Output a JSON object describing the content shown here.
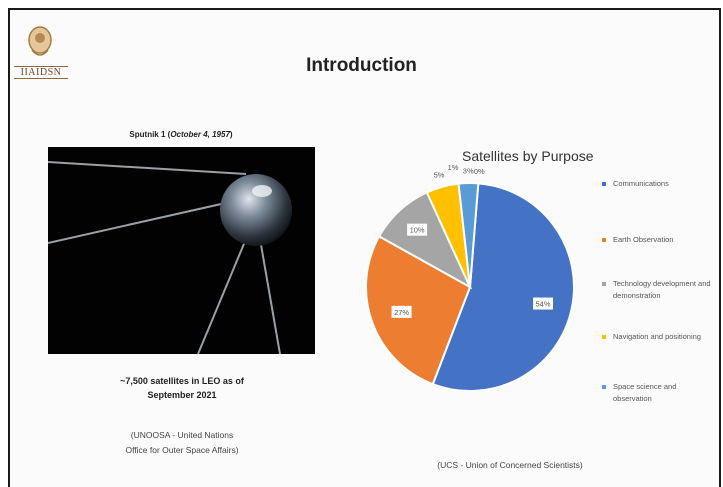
{
  "slide": {
    "logo_text": "IIAIDSN",
    "title": "Introduction",
    "image_caption": {
      "prefix": "Sputnik 1 (",
      "date": "October 4, 1957",
      "suffix": ")"
    },
    "stat_line1": "~7,500 satellites in LEO as of",
    "stat_line2": "September 2021",
    "source_left_line1": "(UNOOSA - United Nations",
    "source_left_line2": "Office for Outer Space Affairs)",
    "source_right": "(UCS - Union of Concerned Scientists)"
  },
  "chart_data": {
    "type": "pie",
    "title": "Satellites by Purpose",
    "labels": [
      "Communications",
      "Earth Observation",
      "Technology development and demonstration",
      "Navigation and positioning",
      "Space science and observation",
      ""
    ],
    "values": [
      54,
      27,
      10,
      5,
      3,
      0
    ],
    "data_labels": [
      "54%",
      "27%",
      "10%",
      "5%",
      "3%",
      "0%"
    ],
    "colors": [
      "#4472c4",
      "#ed7d31",
      "#a5a5a5",
      "#ffc000",
      "#5b9bd5",
      "#70ad47"
    ],
    "legend_position": "right",
    "extra_label": "1%"
  }
}
